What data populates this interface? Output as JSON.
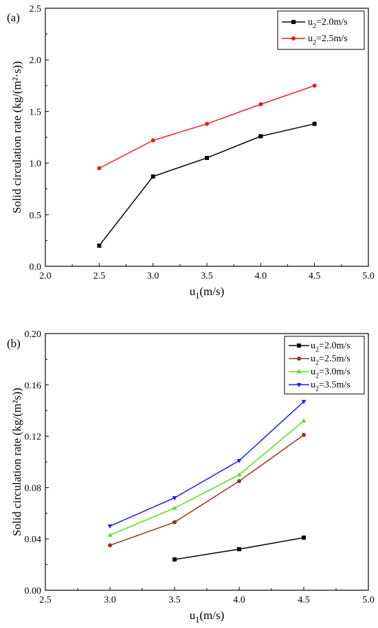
{
  "chart_data": [
    {
      "type": "line",
      "panel_label": "(a)",
      "xlabel": {
        "main": "u",
        "sub": "1",
        "tail": "(m/s)"
      },
      "ylabel": "Solid circulation rate (kg/(m²·s))",
      "xlim": [
        2.0,
        5.0
      ],
      "ylim": [
        0.0,
        2.5
      ],
      "xticks": [
        "2.0",
        "2.5",
        "3.0",
        "3.5",
        "4.0",
        "4.5",
        "5.0"
      ],
      "yticks": [
        "0.0",
        "0.5",
        "1.0",
        "1.5",
        "2.0",
        "2.5"
      ],
      "legend_position": "top-right",
      "series": [
        {
          "name": {
            "main": "u",
            "sub": "2",
            "tail": "=2.0m/s"
          },
          "color": "#000000",
          "marker": "square",
          "x": [
            2.5,
            3.0,
            3.5,
            4.0,
            4.5
          ],
          "values": [
            0.2,
            0.87,
            1.05,
            1.26,
            1.38
          ]
        },
        {
          "name": {
            "main": "u",
            "sub": "2",
            "tail": "=2.5m/s"
          },
          "color": "#ee1c1c",
          "marker": "circle",
          "x": [
            2.5,
            3.0,
            3.5,
            4.0,
            4.5
          ],
          "values": [
            0.95,
            1.22,
            1.38,
            1.57,
            1.75
          ]
        }
      ]
    },
    {
      "type": "line",
      "panel_label": "(b)",
      "xlabel": {
        "main": "u",
        "sub": "1",
        "tail": "(m/s)"
      },
      "ylabel": "Solid circulation rate (kg/(m²s))",
      "xlim": [
        2.5,
        5.0
      ],
      "ylim": [
        0.0,
        0.2
      ],
      "xticks": [
        "2.5",
        "3.0",
        "3.5",
        "4.0",
        "4.5",
        "5.0"
      ],
      "yticks": [
        "0.00",
        "0.04",
        "0.08",
        "0.12",
        "0.16",
        "0.20"
      ],
      "legend_position": "top-right",
      "series": [
        {
          "name": {
            "main": "u",
            "sub": "2",
            "tail": "=2.0m/s"
          },
          "color": "#000000",
          "marker": "square",
          "x": [
            3.5,
            4.0,
            4.5
          ],
          "values": [
            0.024,
            0.032,
            0.041
          ]
        },
        {
          "name": {
            "main": "u",
            "sub": "2",
            "tail": "=2.5m/s"
          },
          "color": "#8b3a1a",
          "marker": "circle",
          "x": [
            3.0,
            3.5,
            4.0,
            4.5
          ],
          "values": [
            0.035,
            0.053,
            0.085,
            0.121
          ]
        },
        {
          "name": {
            "main": "u",
            "sub": "2",
            "tail": "=3.0m/s"
          },
          "color": "#55dd22",
          "marker": "triangle-up",
          "x": [
            3.0,
            3.5,
            4.0,
            4.5
          ],
          "values": [
            0.043,
            0.064,
            0.09,
            0.132
          ]
        },
        {
          "name": {
            "main": "u",
            "sub": "2",
            "tail": "=3.5m/s"
          },
          "color": "#1a1aee",
          "marker": "triangle-down",
          "x": [
            3.0,
            3.5,
            4.0,
            4.5
          ],
          "values": [
            0.05,
            0.072,
            0.101,
            0.147
          ]
        }
      ]
    }
  ]
}
